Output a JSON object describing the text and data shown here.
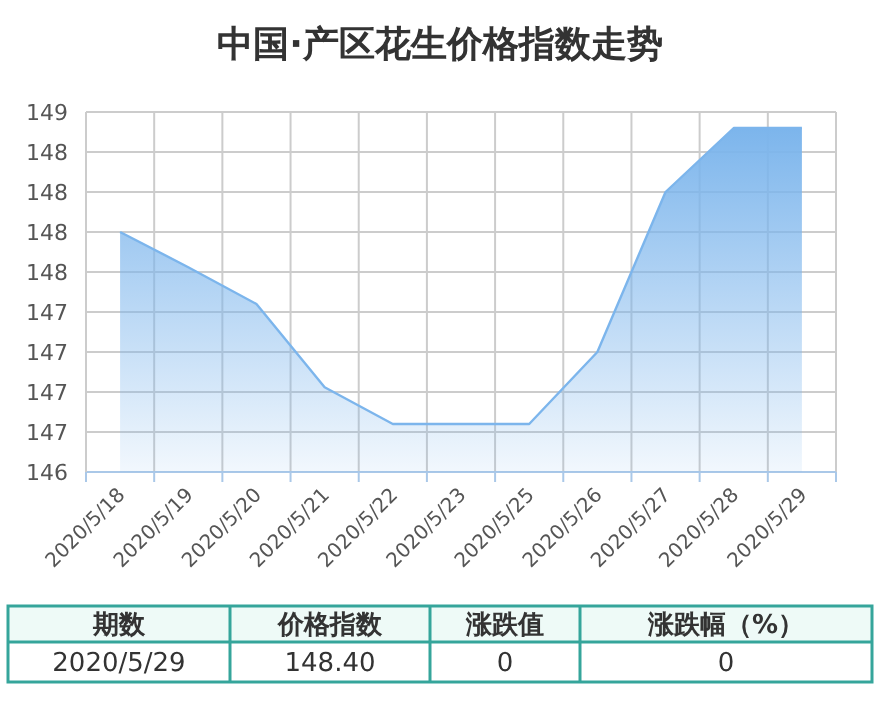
{
  "chart_data": {
    "type": "area",
    "title": "中国·产区花生价格指数走势",
    "categories": [
      "2020/5/18",
      "2020/5/19",
      "2020/5/20",
      "2020/5/21",
      "2020/5/22",
      "2020/5/23",
      "2020/5/25",
      "2020/5/26",
      "2020/5/27",
      "2020/5/28",
      "2020/5/29"
    ],
    "values": [
      147.75,
      147.53,
      147.3,
      146.78,
      146.55,
      146.55,
      146.55,
      147.0,
      148.0,
      148.4,
      148.4
    ],
    "color": "#7cb5ec",
    "ylim": [
      146.25,
      148.5
    ],
    "yticks": [
      {
        "value": 146.25,
        "label": "146"
      },
      {
        "value": 146.5,
        "label": "147"
      },
      {
        "value": 146.75,
        "label": "147"
      },
      {
        "value": 147,
        "label": "147"
      },
      {
        "value": 147.25,
        "label": "147"
      },
      {
        "value": 147.5,
        "label": "148"
      },
      {
        "value": 147.75,
        "label": "148"
      },
      {
        "value": 148,
        "label": "148"
      },
      {
        "value": 148.25,
        "label": "148"
      },
      {
        "value": 148.5,
        "label": "149"
      }
    ],
    "grid": true,
    "annotations": [
      "期数",
      "价格指数",
      "涨跌值",
      "涨跌幅（%）",
      "2020/5/29",
      "148.40",
      "0",
      "0"
    ]
  }
}
